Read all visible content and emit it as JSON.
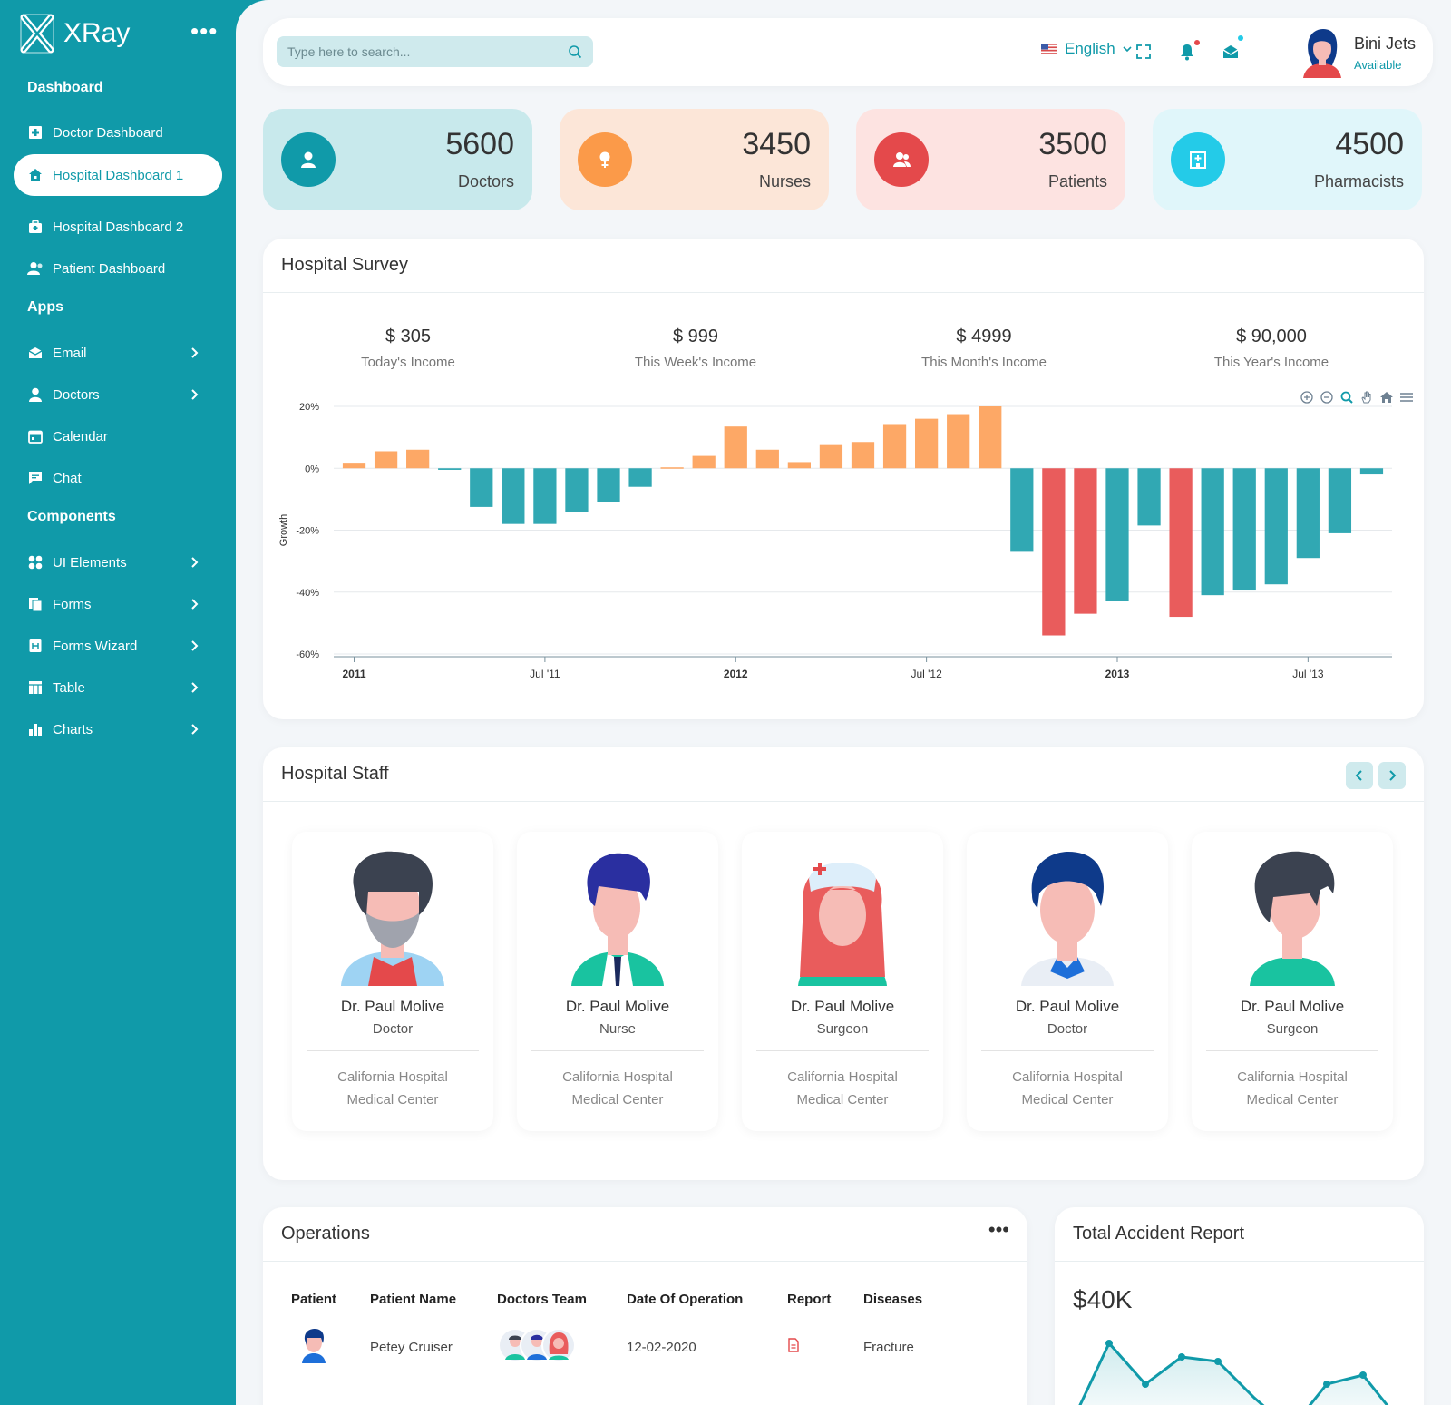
{
  "brand": {
    "name": "XRay"
  },
  "sidebar": {
    "sections": [
      "Dashboard",
      "Apps",
      "Components"
    ],
    "items": [
      {
        "label": "Doctor Dashboard",
        "icon": "hospital-icon"
      },
      {
        "label": "Hospital Dashboard 1",
        "icon": "home-icon",
        "active": true
      },
      {
        "label": "Hospital Dashboard 2",
        "icon": "briefcase-icon"
      },
      {
        "label": "Patient Dashboard",
        "icon": "users-icon"
      },
      {
        "label": "Email",
        "icon": "envelope-icon"
      },
      {
        "label": "Doctors",
        "icon": "user-icon"
      },
      {
        "label": "Calendar",
        "icon": "calendar-icon"
      },
      {
        "label": "Chat",
        "icon": "chat-icon"
      },
      {
        "label": "UI Elements",
        "icon": "grid-icon"
      },
      {
        "label": "Forms",
        "icon": "forms-icon"
      },
      {
        "label": "Forms Wizard",
        "icon": "wizard-icon"
      },
      {
        "label": "Table",
        "icon": "table-icon"
      },
      {
        "label": "Charts",
        "icon": "bar-chart-icon"
      }
    ]
  },
  "topbar": {
    "search_placeholder": "Type here to search...",
    "language": "English",
    "user_name": "Bini Jets",
    "user_status": "Available"
  },
  "stats": [
    {
      "value": "5600",
      "label": "Doctors",
      "color": "#109aa9",
      "bg": "#c8e9ec"
    },
    {
      "value": "3450",
      "label": "Nurses",
      "color": "#fb9a49",
      "bg": "#fce6d8"
    },
    {
      "value": "3500",
      "label": "Patients",
      "color": "#e4494b",
      "bg": "#fde3e1"
    },
    {
      "value": "4500",
      "label": "Pharmacists",
      "color": "#24cbe8",
      "bg": "#e0f6fa"
    }
  ],
  "survey": {
    "title": "Hospital Survey",
    "incomes": [
      {
        "value": "$ 305",
        "label": "Today's Income"
      },
      {
        "value": "$ 999",
        "label": "This Week's Income"
      },
      {
        "value": "$ 4999",
        "label": "This Month's Income"
      },
      {
        "value": "$ 90,000",
        "label": "This Year's Income"
      }
    ]
  },
  "chart_data": {
    "type": "bar",
    "ylabel": "Growth",
    "xlabel": "",
    "ylim": [
      -60,
      20
    ],
    "yticks": [
      "20%",
      "0%",
      "-20%",
      "-40%",
      "-60%"
    ],
    "ytick_values": [
      20,
      0,
      -20,
      -40,
      -60
    ],
    "xticks": [
      {
        "label": "2011",
        "index": 0,
        "bold": true
      },
      {
        "label": "Jul '11",
        "index": 6,
        "bold": false
      },
      {
        "label": "2012",
        "index": 12,
        "bold": true
      },
      {
        "label": "Jul '12",
        "index": 18,
        "bold": false
      },
      {
        "label": "2013",
        "index": 24,
        "bold": true
      },
      {
        "label": "Jul '13",
        "index": 30,
        "bold": false
      }
    ],
    "values": [
      1.5,
      5.5,
      6,
      -0.5,
      -12.5,
      -18,
      -18,
      -14,
      -11,
      -6,
      0.3,
      4,
      13.5,
      6,
      2,
      7.5,
      8.5,
      14,
      16,
      17.5,
      20,
      -27,
      -54,
      -47,
      -43,
      -18.5,
      -48,
      -41,
      -39.5,
      -37.5,
      -29,
      -21,
      -2
    ],
    "highlight_indices": [
      22,
      23,
      26
    ],
    "colors": {
      "positive": "#fda866",
      "negative": "#31a8b3",
      "highlight": "#e95c5c"
    }
  },
  "staff": {
    "title": "Hospital Staff",
    "members": [
      {
        "name": "Dr. Paul Molive",
        "role": "Doctor",
        "org1": "California Hospital",
        "org2": "Medical Center"
      },
      {
        "name": "Dr. Paul Molive",
        "role": "Nurse",
        "org1": "California Hospital",
        "org2": "Medical Center"
      },
      {
        "name": "Dr. Paul Molive",
        "role": "Surgeon",
        "org1": "California Hospital",
        "org2": "Medical Center"
      },
      {
        "name": "Dr. Paul Molive",
        "role": "Doctor",
        "org1": "California Hospital",
        "org2": "Medical Center"
      },
      {
        "name": "Dr. Paul Molive",
        "role": "Surgeon",
        "org1": "California Hospital",
        "org2": "Medical Center"
      }
    ]
  },
  "operations": {
    "title": "Operations",
    "headers": [
      "Patient",
      "Patient Name",
      "Doctors Team",
      "Date Of Operation",
      "Report",
      "Diseases"
    ],
    "rows": [
      {
        "name": "Petey Cruiser",
        "date": "12-02-2020",
        "disease": "Fracture"
      }
    ]
  },
  "accident": {
    "title": "Total Accident Report",
    "value": "$40K"
  }
}
